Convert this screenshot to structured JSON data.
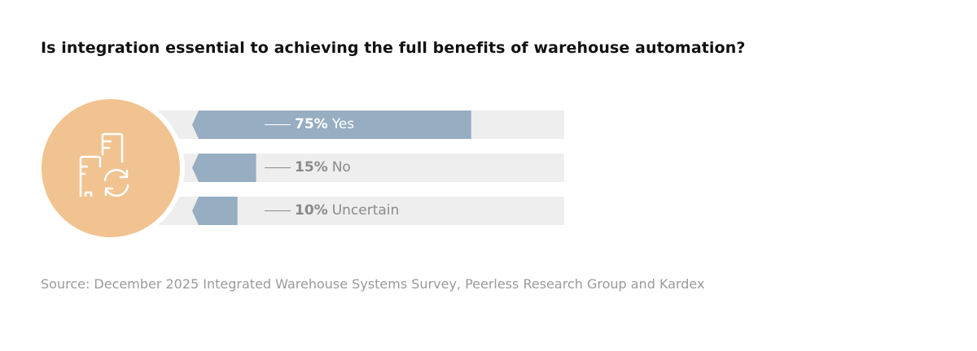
{
  "title": "Is integration essential to achieving the full benefits of warehouse automation?",
  "source": "Source: December 2025 Integrated Warehouse Systems Survey, Peerless Research Group and Kardex",
  "icon": "buildings-sync-icon",
  "colors": {
    "bar": "#97adc1",
    "track": "#eeeeee",
    "circle": "#f0c390",
    "label_on_bar": "#ffffff",
    "label_off_bar": "#8a8a8a"
  },
  "chart_data": {
    "type": "bar",
    "orientation": "horizontal",
    "title": "Is integration essential to achieving the full benefits of warehouse automation?",
    "categories": [
      "Yes",
      "No",
      "Uncertain"
    ],
    "values": [
      75,
      15,
      10
    ],
    "value_labels": [
      "75%",
      "15%",
      "10%"
    ],
    "xlim": [
      0,
      100
    ],
    "grid": false,
    "legend": "none"
  }
}
